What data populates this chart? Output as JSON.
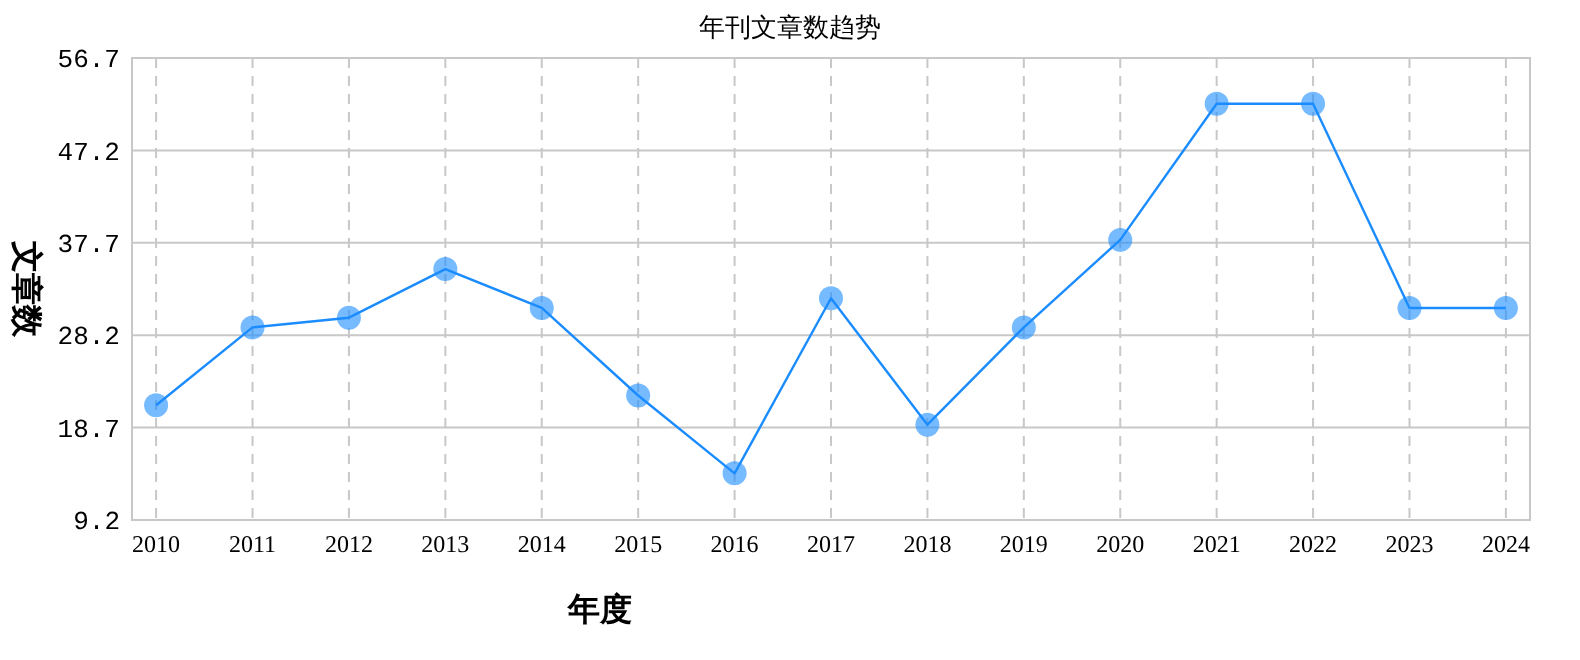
{
  "chart_data": {
    "type": "line",
    "title": "年刊文章数趋势",
    "xlabel": "年度",
    "ylabel": "文章数",
    "categories": [
      "2010",
      "2011",
      "2012",
      "2013",
      "2014",
      "2015",
      "2016",
      "2017",
      "2018",
      "2019",
      "2020",
      "2021",
      "2022",
      "2023",
      "2024"
    ],
    "series": [
      {
        "color": "#1a8cff",
        "values": [
          21,
          29,
          30,
          35,
          31,
          22,
          14,
          32,
          19,
          29,
          38,
          52,
          52,
          31,
          31
        ]
      }
    ],
    "ylim": [
      9.2,
      56.7
    ],
    "yticks": [
      9.2,
      18.7,
      28.2,
      37.7,
      47.2,
      56.7
    ],
    "grid": true,
    "marker": "circle",
    "line_style": "solid"
  }
}
